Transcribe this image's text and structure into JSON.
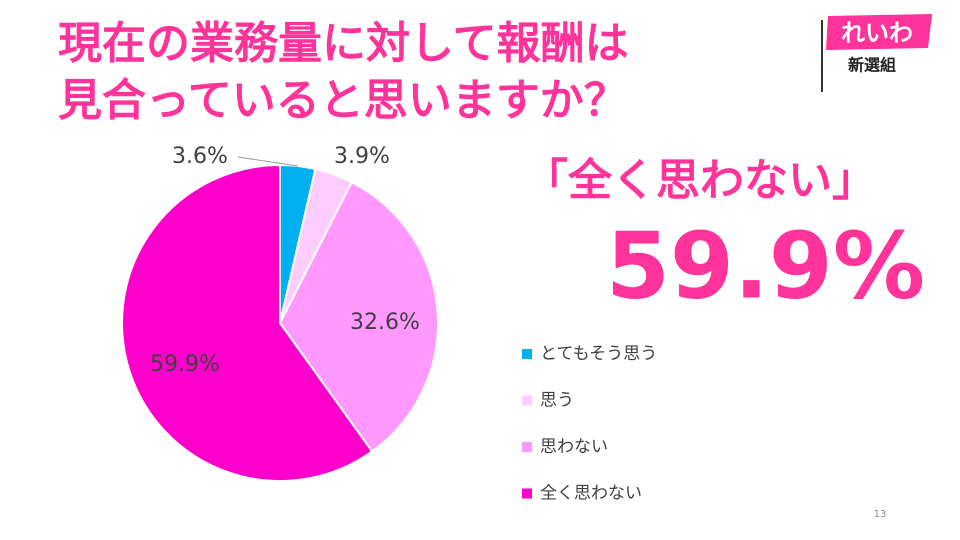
{
  "title": [
    "現在の業務量に対して報酬は",
    "見合っていると思いますか？"
  ],
  "chart_data": {
    "type": "pie",
    "categories": [
      "とてもそう思う",
      "思う",
      "思わない",
      "全く思わない"
    ],
    "values": [
      3.6,
      3.9,
      32.6,
      59.9
    ],
    "value_labels": [
      "3.6%",
      "3.9%",
      "32.6%",
      "59.9%"
    ],
    "colors": [
      "#00b0f0",
      "#ffccff",
      "#ff99ff",
      "#ff00cc"
    ],
    "legend": "right"
  },
  "callout": {
    "label": "「全く思わない」",
    "value": "59.9%"
  },
  "logo": {
    "name": "れいわ",
    "group": "新選組"
  },
  "page_number": "13"
}
